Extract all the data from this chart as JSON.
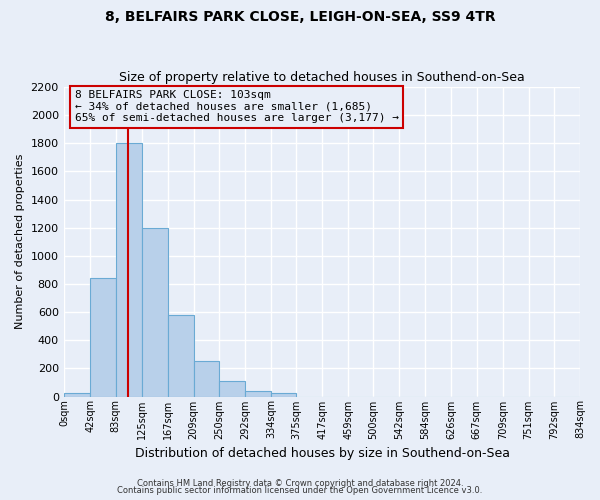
{
  "title": "8, BELFAIRS PARK CLOSE, LEIGH-ON-SEA, SS9 4TR",
  "subtitle": "Size of property relative to detached houses in Southend-on-Sea",
  "xlabel": "Distribution of detached houses by size in Southend-on-Sea",
  "ylabel": "Number of detached properties",
  "bar_color": "#b8d0ea",
  "bar_edge_color": "#6aaad4",
  "red_line_x": 103,
  "bin_edges": [
    0,
    42,
    83,
    125,
    167,
    209,
    250,
    292,
    334,
    375,
    417,
    459,
    500,
    542,
    584,
    626,
    667,
    709,
    751,
    792,
    834
  ],
  "bar_heights": [
    25,
    840,
    1800,
    1200,
    580,
    250,
    110,
    40,
    25,
    0,
    0,
    0,
    0,
    0,
    0,
    0,
    0,
    0,
    0,
    0
  ],
  "tick_labels": [
    "0sqm",
    "42sqm",
    "83sqm",
    "125sqm",
    "167sqm",
    "209sqm",
    "250sqm",
    "292sqm",
    "334sqm",
    "375sqm",
    "417sqm",
    "459sqm",
    "500sqm",
    "542sqm",
    "584sqm",
    "626sqm",
    "667sqm",
    "709sqm",
    "751sqm",
    "792sqm",
    "834sqm"
  ],
  "ylim": [
    0,
    2200
  ],
  "yticks": [
    0,
    200,
    400,
    600,
    800,
    1000,
    1200,
    1400,
    1600,
    1800,
    2000,
    2200
  ],
  "annotation_title": "8 BELFAIRS PARK CLOSE: 103sqm",
  "annotation_line1": "← 34% of detached houses are smaller (1,685)",
  "annotation_line2": "65% of semi-detached houses are larger (3,177) →",
  "footer1": "Contains HM Land Registry data © Crown copyright and database right 2024.",
  "footer2": "Contains public sector information licensed under the Open Government Licence v3.0.",
  "background_color": "#e8eef8",
  "grid_color": "#ffffff",
  "box_color": "#cc0000"
}
